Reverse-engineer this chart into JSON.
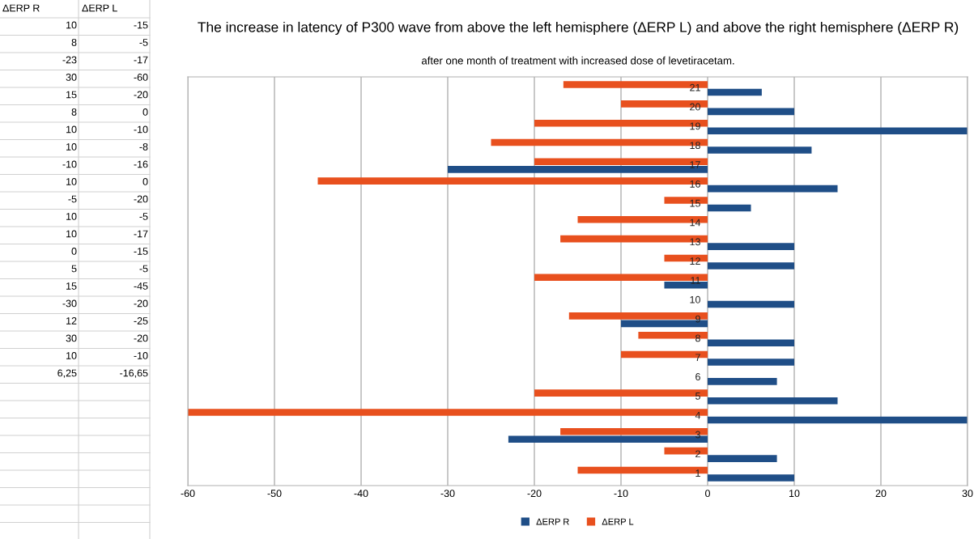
{
  "chart_data": {
    "type": "bar",
    "orientation": "horizontal",
    "title": "The increase in latency of P300 wave from above the left hemisphere (ΔERP L) and above the right hemisphere (ΔERP R)",
    "subtitle": "after one month of treatment with increased dose of levetiracetam.",
    "categories": [
      "21",
      "20",
      "19",
      "18",
      "17",
      "16",
      "15",
      "14",
      "13",
      "12",
      "11",
      "10",
      "9",
      "8",
      "7",
      "6",
      "5",
      "4",
      "3",
      "2",
      "1"
    ],
    "series": [
      {
        "name": "ΔERP R",
        "color": "#1f4e87",
        "values": [
          6.25,
          10,
          30,
          12,
          -30,
          15,
          5,
          0,
          10,
          10,
          -5,
          10,
          -10,
          10,
          10,
          8,
          15,
          30,
          -23,
          8,
          10
        ]
      },
      {
        "name": "ΔERP L",
        "color": "#e8501e",
        "values": [
          -16.65,
          -10,
          -20,
          -25,
          -20,
          -45,
          -5,
          -15,
          -17,
          -5,
          -20,
          0,
          -16,
          -8,
          -10,
          0,
          -20,
          -60,
          -17,
          -5,
          -15
        ]
      }
    ],
    "annotations": [
      "10",
      "-15",
      "8",
      "-5",
      "-23",
      "-17",
      "30",
      "-60",
      "15",
      "-20",
      "8",
      "0",
      "10",
      "-10",
      "10",
      "-8",
      "-10",
      "-16",
      "10",
      "0",
      "-5",
      "-20",
      "10",
      "-5",
      "10",
      "-17",
      "0",
      "-15",
      "5",
      "-5",
      "15",
      "-45",
      "-30",
      "-20",
      "12",
      "-25",
      "30",
      "-20",
      "10",
      "-10",
      "6,25",
      "-16,65"
    ],
    "xlim": [
      -60,
      30
    ],
    "xticks": [
      -60,
      -50,
      -40,
      -30,
      -20,
      -10,
      0,
      10,
      20,
      30
    ],
    "grid": "x",
    "legend": "bottom"
  }
}
